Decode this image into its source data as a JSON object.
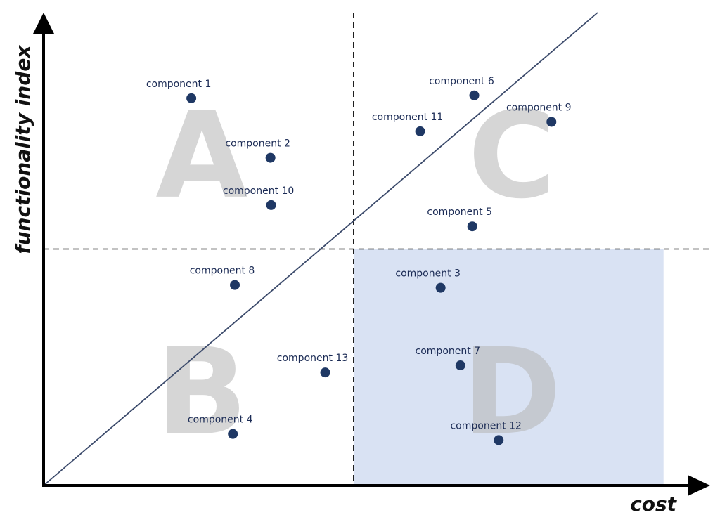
{
  "chart_data": {
    "type": "scatter",
    "xlabel": "cost",
    "ylabel": "functionality index",
    "xlim": [
      0,
      100
    ],
    "ylim": [
      0,
      100
    ],
    "grid": false,
    "divider": {
      "x": 47,
      "y": 50
    },
    "diagonal": {
      "from": [
        0,
        0
      ],
      "to": [
        84,
        100
      ]
    },
    "highlight_region": {
      "quadrant": "D",
      "x_range": [
        47,
        94
      ],
      "y_range": [
        0,
        50
      ],
      "color": "#d9e2f3"
    },
    "quadrants": [
      {
        "letter": "A",
        "x": 24,
        "y": 70
      },
      {
        "letter": "B",
        "x": 24,
        "y": 20
      },
      {
        "letter": "C",
        "x": 71,
        "y": 70
      },
      {
        "letter": "D",
        "x": 71,
        "y": 20
      }
    ],
    "points": [
      {
        "label": "component 1",
        "x": 22.4,
        "y": 81.9
      },
      {
        "label": "component 2",
        "x": 34.4,
        "y": 69.3
      },
      {
        "label": "component 3",
        "x": 60.2,
        "y": 41.8
      },
      {
        "label": "component 4",
        "x": 28.7,
        "y": 10.9
      },
      {
        "label": "component 5",
        "x": 65.0,
        "y": 54.8
      },
      {
        "label": "component 6",
        "x": 65.3,
        "y": 82.5
      },
      {
        "label": "component 7",
        "x": 63.2,
        "y": 25.4
      },
      {
        "label": "component 8",
        "x": 29.0,
        "y": 42.4
      },
      {
        "label": "component 9",
        "x": 77.0,
        "y": 76.9
      },
      {
        "label": "component 10",
        "x": 34.5,
        "y": 59.3
      },
      {
        "label": "component 11",
        "x": 57.1,
        "y": 74.9
      },
      {
        "label": "component 12",
        "x": 69.0,
        "y": 9.6
      },
      {
        "label": "component 13",
        "x": 42.7,
        "y": 23.9
      }
    ],
    "point_color": "#1f3864",
    "line_color": "#3b4a6b"
  }
}
